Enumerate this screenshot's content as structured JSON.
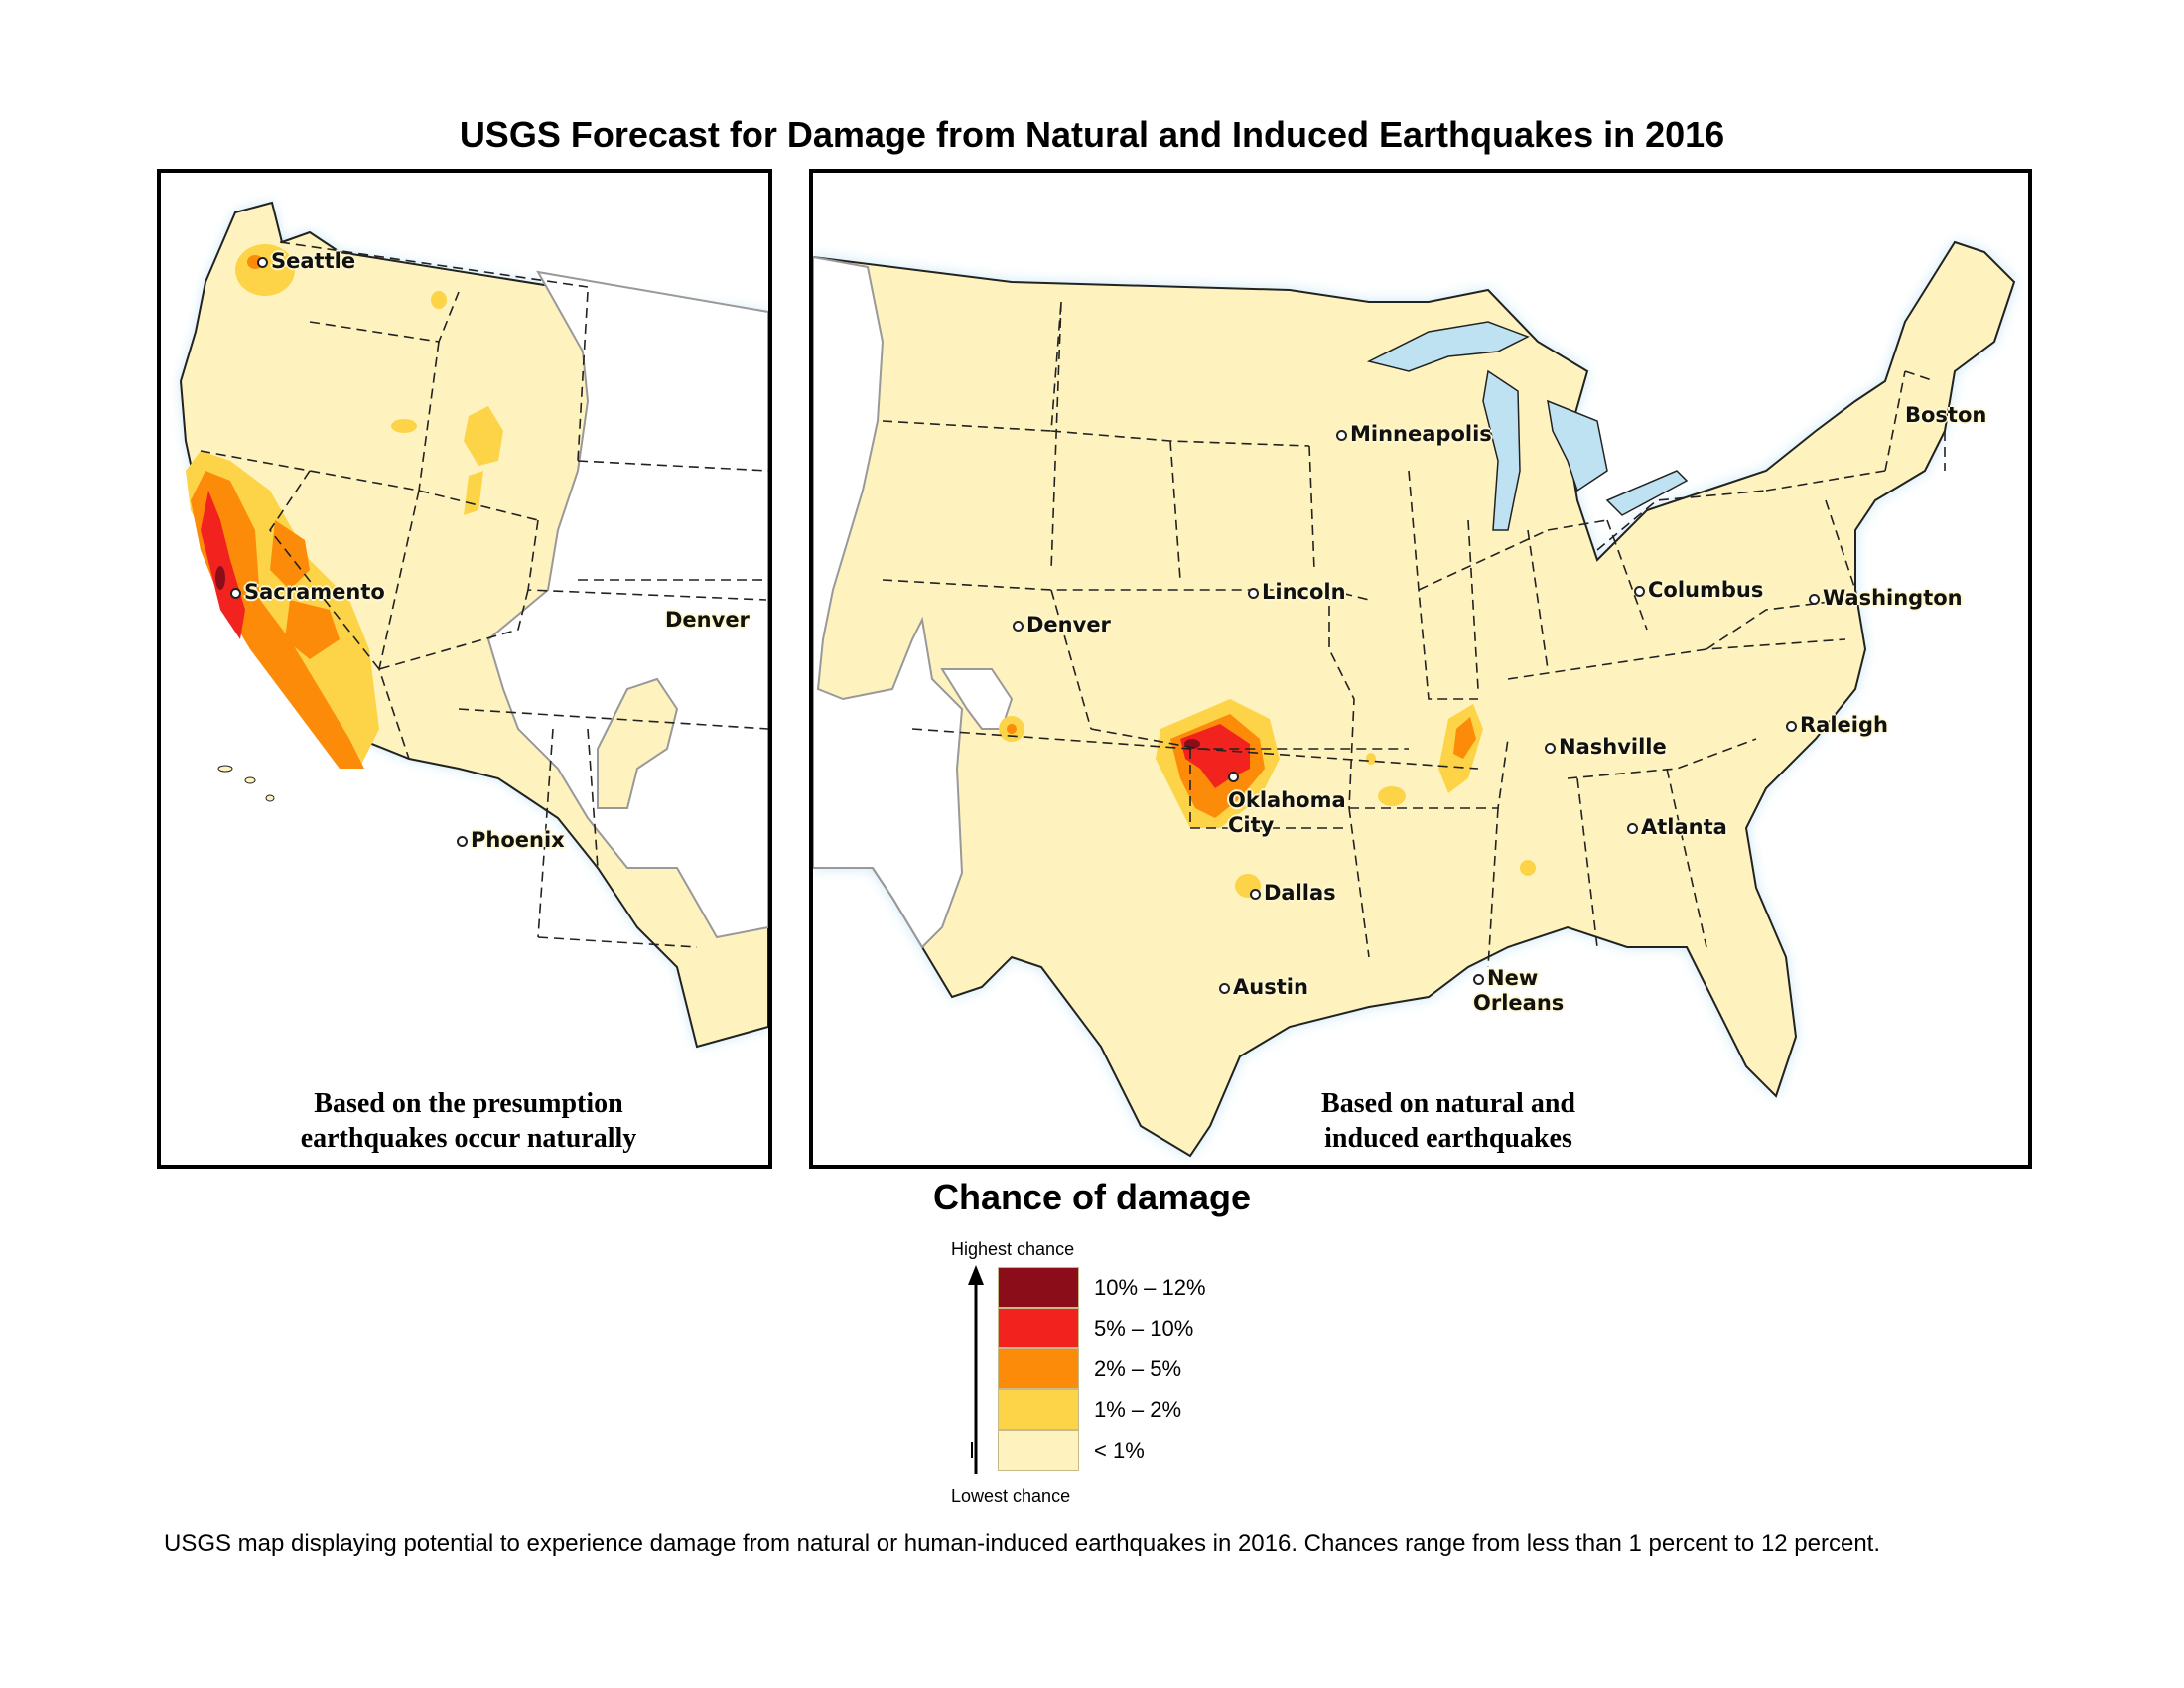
{
  "title": "USGS Forecast for Damage from Natural and Induced Earthquakes in 2016",
  "left_map": {
    "note": "Based on the presumption earthquakes occur naturally",
    "cities": [
      "Seattle",
      "Sacramento",
      "Denver",
      "Phoenix"
    ]
  },
  "right_map": {
    "note": "Based on natural and induced earthquakes",
    "cities": [
      "Minneapolis",
      "Boston",
      "Lincoln",
      "Denver",
      "Columbus",
      "Washington",
      "Raleigh",
      "Nashville",
      "Oklahoma City",
      "Atlanta",
      "Dallas",
      "Austin",
      "New Orleans"
    ]
  },
  "legend": {
    "title": "Chance of damage",
    "top_label": "Highest chance",
    "bottom_label": "Lowest chance",
    "classes": [
      {
        "label": "10% – 12%",
        "color": "#8b0d1a"
      },
      {
        "label": "5% – 10%",
        "color": "#f2231f"
      },
      {
        "label": "2% – 5%",
        "color": "#fb8b09"
      },
      {
        "label": "1% – 2%",
        "color": "#fdd447"
      },
      {
        "label": "< 1%",
        "color": "#fef3bf"
      }
    ]
  },
  "colors": {
    "land": "#fef3bf",
    "water_glow": "#bfe2f3",
    "border": "#000000"
  },
  "caption": "USGS map displaying potential to experience damage from natural or human-induced earthquakes in 2016. Chances range from less than 1 percent to 12 percent."
}
